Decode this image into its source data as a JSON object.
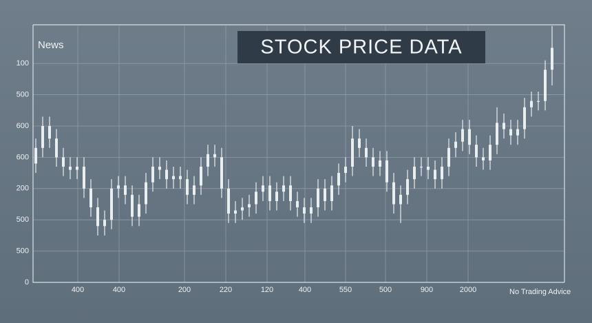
{
  "chart_data": {
    "type": "candlestick",
    "title": "STOCK PRICE DATA",
    "annotations": [
      "News",
      "No Trading Advice"
    ],
    "color": "#e9eef1",
    "grid": true,
    "xlim": [
      -0.4,
      76.8
    ],
    "ylim": [
      0,
      8.2
    ],
    "yticks": [
      {
        "value": 0,
        "label": "0"
      },
      {
        "value": 1,
        "label": "500"
      },
      {
        "value": 2,
        "label": "500"
      },
      {
        "value": 3,
        "label": "200"
      },
      {
        "value": 4,
        "label": "600"
      },
      {
        "value": 5,
        "label": "600"
      },
      {
        "value": 6,
        "label": "500"
      },
      {
        "value": 7,
        "label": "100"
      }
    ],
    "xticks": [
      {
        "value": 6.1,
        "label": "400"
      },
      {
        "value": 12.1,
        "label": "400"
      },
      {
        "value": 21.6,
        "label": "200"
      },
      {
        "value": 27.6,
        "label": "220"
      },
      {
        "value": 33.6,
        "label": "120"
      },
      {
        "value": 39.1,
        "label": "400"
      },
      {
        "value": 45,
        "label": "550"
      },
      {
        "value": 50.8,
        "label": "500"
      },
      {
        "value": 56.8,
        "label": "900"
      },
      {
        "value": 62.8,
        "label": "2000"
      }
    ],
    "open": [
      3.8,
      4.3,
      5.0,
      4.6,
      4.0,
      3.7,
      3.6,
      3.7,
      3.0,
      2.4,
      1.8,
      2.0,
      3.0,
      3.1,
      2.8,
      2.1,
      2.5,
      3.2,
      3.7,
      3.6,
      3.3,
      3.4,
      3.3,
      2.8,
      3.1,
      3.7,
      4.1,
      4.0,
      3.0,
      2.2,
      2.3,
      2.4,
      2.5,
      2.9,
      3.1,
      2.6,
      2.9,
      3.1,
      2.6,
      2.4,
      2.2,
      2.4,
      3.0,
      2.6,
      3.1,
      3.5,
      3.7,
      4.6,
      4.3,
      4.0,
      3.7,
      3.9,
      3.2,
      2.5,
      2.8,
      3.3,
      3.7,
      3.7,
      3.6,
      3.3,
      3.7,
      4.3,
      4.5,
      4.9,
      4.4,
      4.0,
      3.9,
      4.4,
      5.1,
      4.9,
      4.7,
      4.9,
      5.6,
      5.8,
      5.8,
      6.8
    ],
    "high": [
      4.6,
      5.3,
      5.3,
      4.9,
      4.3,
      4.0,
      4.0,
      4.0,
      3.3,
      2.7,
      2.3,
      3.3,
      3.4,
      3.4,
      3.1,
      2.8,
      3.5,
      4.0,
      4.0,
      3.9,
      3.7,
      3.7,
      3.6,
      3.4,
      4.0,
      4.4,
      4.4,
      4.3,
      3.3,
      2.6,
      2.7,
      2.8,
      3.2,
      3.4,
      3.4,
      3.2,
      3.4,
      3.4,
      2.9,
      2.7,
      2.7,
      3.3,
      3.3,
      3.4,
      3.8,
      4.0,
      5.0,
      4.9,
      4.6,
      4.3,
      4.2,
      4.2,
      3.5,
      3.1,
      3.6,
      4.0,
      4.0,
      4.0,
      3.9,
      4.0,
      4.6,
      4.8,
      5.2,
      5.2,
      4.7,
      4.3,
      4.7,
      5.6,
      5.4,
      5.2,
      5.2,
      5.9,
      6.1,
      6.1,
      7.1,
      8.2
    ],
    "low": [
      3.5,
      4.0,
      4.3,
      3.7,
      3.4,
      3.3,
      3.3,
      2.7,
      2.1,
      1.5,
      1.5,
      1.7,
      2.7,
      2.5,
      1.8,
      1.8,
      2.2,
      2.9,
      3.3,
      3.0,
      3.0,
      3.0,
      2.5,
      2.5,
      2.8,
      3.4,
      3.7,
      2.7,
      1.9,
      1.9,
      2.0,
      2.1,
      2.2,
      2.6,
      2.3,
      2.3,
      2.6,
      2.3,
      2.1,
      1.9,
      1.9,
      2.1,
      2.3,
      2.3,
      2.8,
      3.2,
      3.4,
      4.0,
      3.7,
      3.4,
      3.4,
      2.9,
      2.2,
      1.9,
      2.5,
      3.0,
      3.4,
      3.3,
      3.0,
      3.0,
      3.4,
      4.0,
      4.2,
      4.1,
      3.7,
      3.6,
      3.6,
      4.1,
      4.6,
      4.4,
      4.4,
      4.6,
      5.3,
      5.5,
      5.5,
      6.3
    ],
    "close": [
      4.3,
      5.0,
      4.6,
      4.0,
      3.7,
      3.6,
      3.7,
      3.0,
      2.4,
      1.8,
      2.0,
      3.0,
      3.1,
      2.8,
      2.1,
      2.5,
      3.2,
      3.7,
      3.6,
      3.3,
      3.4,
      3.3,
      2.8,
      3.1,
      3.7,
      4.1,
      4.0,
      3.0,
      2.2,
      2.3,
      2.4,
      2.5,
      2.9,
      3.1,
      2.6,
      2.9,
      3.1,
      2.6,
      2.4,
      2.2,
      2.4,
      3.0,
      2.6,
      3.1,
      3.5,
      3.7,
      4.6,
      4.3,
      4.0,
      3.7,
      3.9,
      3.2,
      2.5,
      2.8,
      3.3,
      3.7,
      3.7,
      3.6,
      3.3,
      3.7,
      4.3,
      4.5,
      4.9,
      4.4,
      4.0,
      3.9,
      4.4,
      5.1,
      4.9,
      4.7,
      4.9,
      5.6,
      5.8,
      5.8,
      6.8,
      7.5
    ]
  }
}
